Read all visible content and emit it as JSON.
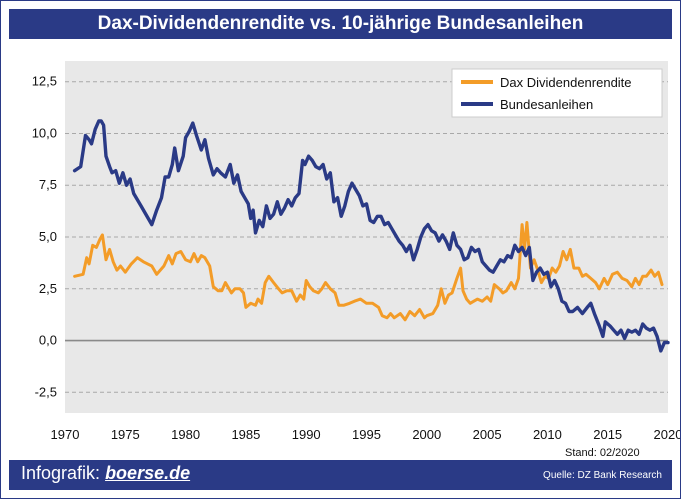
{
  "title": "Dax-Dividendenrendite vs. 10-jährige Bundesanleihen",
  "stand": "Stand: 02/2020",
  "footer": {
    "brand_prefix": "Infografik:",
    "brand_site": "boerse.de",
    "source": "Quelle: DZ Bank Research"
  },
  "colors": {
    "dax": "#f39c28",
    "bund": "#2a3a86",
    "plot_bg": "#e8e8e8",
    "frame": "#2a3a86"
  },
  "chart_data": {
    "type": "line",
    "title": "Dax-Dividendenrendite vs. 10-jährige Bundesanleihen",
    "xlim": [
      1970,
      2020
    ],
    "ylim": [
      -3.5,
      13.5
    ],
    "x_ticks": [
      1970,
      1975,
      1980,
      1985,
      1990,
      1995,
      2000,
      2005,
      2010,
      2015,
      2020
    ],
    "y_ticks": [
      -2.5,
      0,
      2.5,
      5,
      7.5,
      10,
      12.5
    ],
    "y_tick_labels": [
      "-2,5",
      "0,0",
      "2,5",
      "5,0",
      "7,5",
      "10,0",
      "12,5"
    ],
    "grid": "horizontal dashed",
    "legend_position": "top-right",
    "series": [
      {
        "name": "Dax Dividendenrendite",
        "color": "#f39c28",
        "points": [
          [
            1970.8,
            3.1
          ],
          [
            1971.5,
            3.2
          ],
          [
            1971.8,
            4.0
          ],
          [
            1972.0,
            3.7
          ],
          [
            1972.3,
            4.6
          ],
          [
            1972.6,
            4.5
          ],
          [
            1972.9,
            4.9
          ],
          [
            1973.1,
            5.1
          ],
          [
            1973.4,
            3.9
          ],
          [
            1973.7,
            4.4
          ],
          [
            1974.0,
            3.8
          ],
          [
            1974.3,
            3.4
          ],
          [
            1974.6,
            3.6
          ],
          [
            1975.0,
            3.3
          ],
          [
            1975.5,
            3.7
          ],
          [
            1976.0,
            4.0
          ],
          [
            1976.5,
            3.8
          ],
          [
            1977.2,
            3.6
          ],
          [
            1977.6,
            3.2
          ],
          [
            1978.2,
            3.6
          ],
          [
            1978.6,
            4.1
          ],
          [
            1978.9,
            3.7
          ],
          [
            1979.2,
            4.2
          ],
          [
            1979.6,
            4.3
          ],
          [
            1980.0,
            3.9
          ],
          [
            1980.4,
            3.8
          ],
          [
            1980.7,
            4.2
          ],
          [
            1981.0,
            3.8
          ],
          [
            1981.3,
            4.1
          ],
          [
            1981.6,
            4.0
          ],
          [
            1982.0,
            3.6
          ],
          [
            1982.3,
            2.6
          ],
          [
            1982.7,
            2.4
          ],
          [
            1983.0,
            2.4
          ],
          [
            1983.3,
            2.8
          ],
          [
            1983.8,
            2.3
          ],
          [
            1984.1,
            2.5
          ],
          [
            1984.5,
            2.5
          ],
          [
            1984.8,
            2.3
          ],
          [
            1985.0,
            1.6
          ],
          [
            1985.4,
            1.8
          ],
          [
            1985.8,
            1.7
          ],
          [
            1986.0,
            2.0
          ],
          [
            1986.3,
            1.8
          ],
          [
            1986.6,
            2.8
          ],
          [
            1986.9,
            3.1
          ],
          [
            1987.3,
            2.8
          ],
          [
            1987.7,
            2.5
          ],
          [
            1988.0,
            2.3
          ],
          [
            1988.4,
            2.4
          ],
          [
            1988.8,
            2.4
          ],
          [
            1989.2,
            1.9
          ],
          [
            1989.5,
            2.2
          ],
          [
            1989.8,
            2.0
          ],
          [
            1990.0,
            2.9
          ],
          [
            1990.3,
            2.6
          ],
          [
            1990.6,
            2.4
          ],
          [
            1991.0,
            2.3
          ],
          [
            1991.3,
            2.5
          ],
          [
            1991.6,
            2.8
          ],
          [
            1992.0,
            2.5
          ],
          [
            1992.4,
            2.3
          ],
          [
            1992.7,
            1.7
          ],
          [
            1993.1,
            1.7
          ],
          [
            1993.6,
            1.8
          ],
          [
            1994.0,
            1.9
          ],
          [
            1994.5,
            2.0
          ],
          [
            1995.0,
            1.8
          ],
          [
            1995.5,
            1.8
          ],
          [
            1996.0,
            1.6
          ],
          [
            1996.3,
            1.2
          ],
          [
            1996.7,
            1.1
          ],
          [
            1997.0,
            1.3
          ],
          [
            1997.3,
            1.1
          ],
          [
            1997.8,
            1.3
          ],
          [
            1998.2,
            1.0
          ],
          [
            1998.6,
            1.4
          ],
          [
            1999.0,
            1.2
          ],
          [
            1999.4,
            1.5
          ],
          [
            1999.8,
            1.1
          ],
          [
            2000.0,
            1.2
          ],
          [
            2000.5,
            1.3
          ],
          [
            2000.9,
            1.7
          ],
          [
            2001.2,
            2.5
          ],
          [
            2001.5,
            1.8
          ],
          [
            2001.8,
            2.2
          ],
          [
            2002.1,
            2.3
          ],
          [
            2002.5,
            3.0
          ],
          [
            2002.8,
            3.5
          ],
          [
            2003.0,
            2.4
          ],
          [
            2003.3,
            2.0
          ],
          [
            2003.6,
            1.8
          ],
          [
            2003.9,
            1.9
          ],
          [
            2004.2,
            2.0
          ],
          [
            2004.6,
            1.9
          ],
          [
            2005.0,
            2.1
          ],
          [
            2005.3,
            1.9
          ],
          [
            2005.6,
            2.7
          ],
          [
            2006.0,
            2.5
          ],
          [
            2006.3,
            2.3
          ],
          [
            2006.6,
            2.4
          ],
          [
            2007.0,
            2.8
          ],
          [
            2007.3,
            2.5
          ],
          [
            2007.6,
            3.0
          ],
          [
            2007.9,
            5.6
          ],
          [
            2008.1,
            4.4
          ],
          [
            2008.3,
            5.7
          ],
          [
            2008.6,
            3.5
          ],
          [
            2008.9,
            3.9
          ],
          [
            2009.2,
            3.4
          ],
          [
            2009.5,
            2.8
          ],
          [
            2009.8,
            3.1
          ],
          [
            2010.1,
            3.0
          ],
          [
            2010.4,
            3.5
          ],
          [
            2010.7,
            3.3
          ],
          [
            2011.0,
            3.6
          ],
          [
            2011.3,
            4.3
          ],
          [
            2011.6,
            3.9
          ],
          [
            2011.9,
            4.4
          ],
          [
            2012.2,
            3.5
          ],
          [
            2012.6,
            3.5
          ],
          [
            2012.9,
            3.1
          ],
          [
            2013.2,
            3.2
          ],
          [
            2013.6,
            3.0
          ],
          [
            2014.0,
            2.8
          ],
          [
            2014.3,
            2.5
          ],
          [
            2014.7,
            3.0
          ],
          [
            2015.0,
            2.7
          ],
          [
            2015.4,
            3.2
          ],
          [
            2015.8,
            3.3
          ],
          [
            2016.2,
            3.0
          ],
          [
            2016.6,
            2.9
          ],
          [
            2017.0,
            2.6
          ],
          [
            2017.3,
            3.0
          ],
          [
            2017.6,
            2.7
          ],
          [
            2017.9,
            3.1
          ],
          [
            2018.2,
            3.1
          ],
          [
            2018.6,
            3.4
          ],
          [
            2018.9,
            3.1
          ],
          [
            2019.2,
            3.3
          ],
          [
            2019.5,
            2.7
          ]
        ]
      },
      {
        "name": "Bundesanleihen",
        "color": "#2a3a86",
        "points": [
          [
            1970.8,
            8.2
          ],
          [
            1971.3,
            8.4
          ],
          [
            1971.7,
            9.9
          ],
          [
            1972.0,
            9.7
          ],
          [
            1972.2,
            9.5
          ],
          [
            1972.5,
            10.2
          ],
          [
            1972.8,
            10.6
          ],
          [
            1973.0,
            10.6
          ],
          [
            1973.2,
            10.4
          ],
          [
            1973.4,
            8.9
          ],
          [
            1973.7,
            8.4
          ],
          [
            1973.9,
            8.1
          ],
          [
            1974.2,
            8.2
          ],
          [
            1974.5,
            7.6
          ],
          [
            1974.8,
            8.1
          ],
          [
            1975.1,
            7.5
          ],
          [
            1975.4,
            7.8
          ],
          [
            1975.7,
            7.1
          ],
          [
            1976.3,
            6.5
          ],
          [
            1976.9,
            5.9
          ],
          [
            1977.2,
            5.6
          ],
          [
            1977.6,
            6.3
          ],
          [
            1978.0,
            6.9
          ],
          [
            1978.3,
            7.9
          ],
          [
            1978.6,
            7.9
          ],
          [
            1978.9,
            8.5
          ],
          [
            1979.1,
            9.3
          ],
          [
            1979.4,
            8.2
          ],
          [
            1979.8,
            8.9
          ],
          [
            1980.0,
            9.8
          ],
          [
            1980.3,
            10.1
          ],
          [
            1980.6,
            10.5
          ],
          [
            1980.9,
            9.9
          ],
          [
            1981.3,
            9.2
          ],
          [
            1981.6,
            9.7
          ],
          [
            1981.9,
            8.8
          ],
          [
            1982.3,
            8.0
          ],
          [
            1982.6,
            8.3
          ],
          [
            1982.9,
            8.1
          ],
          [
            1983.3,
            7.9
          ],
          [
            1983.7,
            8.5
          ],
          [
            1984.0,
            7.6
          ],
          [
            1984.3,
            8.0
          ],
          [
            1984.6,
            7.2
          ],
          [
            1984.9,
            6.9
          ],
          [
            1985.2,
            6.6
          ],
          [
            1985.4,
            5.9
          ],
          [
            1985.6,
            6.3
          ],
          [
            1985.8,
            5.2
          ],
          [
            1986.1,
            5.8
          ],
          [
            1986.4,
            5.5
          ],
          [
            1986.7,
            6.5
          ],
          [
            1987.0,
            5.9
          ],
          [
            1987.3,
            6.1
          ],
          [
            1987.6,
            6.7
          ],
          [
            1987.9,
            6.1
          ],
          [
            1988.2,
            6.4
          ],
          [
            1988.5,
            6.8
          ],
          [
            1988.8,
            6.5
          ],
          [
            1989.1,
            6.9
          ],
          [
            1989.4,
            7.1
          ],
          [
            1989.7,
            8.7
          ],
          [
            1989.9,
            8.5
          ],
          [
            1990.2,
            8.9
          ],
          [
            1990.5,
            8.7
          ],
          [
            1990.8,
            8.4
          ],
          [
            1991.1,
            8.3
          ],
          [
            1991.4,
            8.5
          ],
          [
            1991.7,
            7.8
          ],
          [
            1992.0,
            8.1
          ],
          [
            1992.3,
            6.7
          ],
          [
            1992.6,
            6.9
          ],
          [
            1992.9,
            6.0
          ],
          [
            1993.2,
            6.5
          ],
          [
            1993.5,
            7.2
          ],
          [
            1993.8,
            7.6
          ],
          [
            1994.1,
            7.3
          ],
          [
            1994.4,
            7.0
          ],
          [
            1994.7,
            6.5
          ],
          [
            1995.0,
            6.6
          ],
          [
            1995.3,
            5.8
          ],
          [
            1995.6,
            5.7
          ],
          [
            1995.9,
            6.0
          ],
          [
            1996.2,
            6.0
          ],
          [
            1996.5,
            5.6
          ],
          [
            1996.8,
            5.7
          ],
          [
            1997.1,
            5.4
          ],
          [
            1997.4,
            5.1
          ],
          [
            1997.7,
            4.8
          ],
          [
            1998.0,
            4.6
          ],
          [
            1998.3,
            4.3
          ],
          [
            1998.6,
            4.6
          ],
          [
            1998.9,
            3.9
          ],
          [
            1999.2,
            4.4
          ],
          [
            1999.5,
            5.0
          ],
          [
            1999.8,
            5.4
          ],
          [
            2000.1,
            5.6
          ],
          [
            2000.4,
            5.3
          ],
          [
            2000.7,
            5.2
          ],
          [
            2001.0,
            4.8
          ],
          [
            2001.3,
            5.1
          ],
          [
            2001.6,
            4.8
          ],
          [
            2001.9,
            4.4
          ],
          [
            2002.2,
            5.2
          ],
          [
            2002.5,
            4.6
          ],
          [
            2002.8,
            4.4
          ],
          [
            2003.1,
            3.9
          ],
          [
            2003.4,
            4.0
          ],
          [
            2003.7,
            4.5
          ],
          [
            2004.0,
            4.3
          ],
          [
            2004.3,
            4.4
          ],
          [
            2004.6,
            3.8
          ],
          [
            2004.9,
            3.6
          ],
          [
            2005.2,
            3.4
          ],
          [
            2005.5,
            3.3
          ],
          [
            2005.8,
            3.6
          ],
          [
            2006.1,
            3.9
          ],
          [
            2006.4,
            3.8
          ],
          [
            2006.7,
            4.1
          ],
          [
            2007.0,
            4.0
          ],
          [
            2007.3,
            4.6
          ],
          [
            2007.6,
            4.3
          ],
          [
            2007.9,
            4.5
          ],
          [
            2008.2,
            4.1
          ],
          [
            2008.5,
            4.5
          ],
          [
            2008.8,
            2.9
          ],
          [
            2009.1,
            3.3
          ],
          [
            2009.4,
            3.5
          ],
          [
            2009.7,
            3.2
          ],
          [
            2010.0,
            3.3
          ],
          [
            2010.3,
            2.6
          ],
          [
            2010.6,
            2.9
          ],
          [
            2010.9,
            2.5
          ],
          [
            2011.2,
            1.9
          ],
          [
            2011.5,
            1.8
          ],
          [
            2011.8,
            1.4
          ],
          [
            2012.1,
            1.4
          ],
          [
            2012.5,
            1.6
          ],
          [
            2012.9,
            1.3
          ],
          [
            2013.3,
            1.6
          ],
          [
            2013.6,
            1.8
          ],
          [
            2013.9,
            1.3
          ],
          [
            2014.3,
            0.7
          ],
          [
            2014.6,
            0.2
          ],
          [
            2014.8,
            0.9
          ],
          [
            2015.2,
            0.7
          ],
          [
            2015.5,
            0.5
          ],
          [
            2015.8,
            0.3
          ],
          [
            2016.1,
            0.5
          ],
          [
            2016.4,
            0.1
          ],
          [
            2016.7,
            0.5
          ],
          [
            2017.0,
            0.4
          ],
          [
            2017.3,
            0.5
          ],
          [
            2017.6,
            0.3
          ],
          [
            2017.9,
            0.8
          ],
          [
            2018.2,
            0.6
          ],
          [
            2018.5,
            0.5
          ],
          [
            2018.8,
            0.6
          ],
          [
            2019.1,
            0.2
          ],
          [
            2019.4,
            -0.5
          ],
          [
            2019.7,
            -0.1
          ],
          [
            2020.0,
            -0.1
          ]
        ]
      }
    ]
  }
}
